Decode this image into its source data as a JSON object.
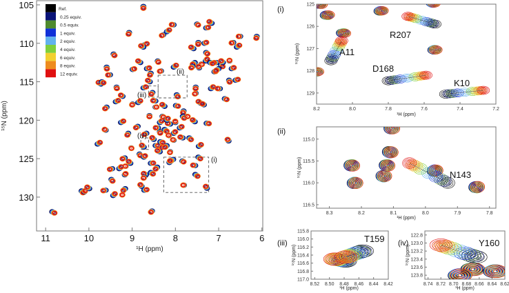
{
  "chart_data": [
    {
      "id": "main",
      "type": "scatter",
      "subtype": "2D 1H-15N HSQC titration overlay",
      "xlabel": "¹H (ppm)",
      "ylabel": "¹⁵N (ppm)",
      "xlim": [
        11.21,
        5.98
      ],
      "ylim": [
        104.46,
        134.4
      ],
      "x_reversed": true,
      "y_reversed": true,
      "xticks": [
        "11",
        "10",
        "9",
        "8",
        "7",
        "6"
      ],
      "yticks": [
        "105",
        "110",
        "115",
        "120",
        "125",
        "130"
      ],
      "legend": {
        "placement": "top-left",
        "entries": [
          {
            "label": "Ref.",
            "color": "#000000"
          },
          {
            "label": "0.25 equiv.",
            "color": "#0a1478"
          },
          {
            "label": "0.5 equiv.",
            "color": "#4f8a2e"
          },
          {
            "label": "1 equiv.",
            "color": "#1030d8"
          },
          {
            "label": "2 equiv.",
            "color": "#62b2ee"
          },
          {
            "label": "4 equiv.",
            "color": "#7fcf3c"
          },
          {
            "label": "6 equiv.",
            "color": "#f2d030"
          },
          {
            "label": "8 equiv.",
            "color": "#ee8c1e"
          },
          {
            "label": "12 equiv.",
            "color": "#e01010"
          }
        ]
      },
      "inset_regions": [
        {
          "label": "(i)",
          "h": [
            8.27,
            7.23
          ],
          "n": [
            124.8,
            129.4
          ]
        },
        {
          "label": "(ii)",
          "h": [
            8.4,
            7.73
          ],
          "n": [
            114.15,
            117.1
          ]
        },
        {
          "label": "(iii)",
          "h": [
            8.62,
            8.4
          ],
          "n": [
            115.55,
            117.0
          ]
        },
        {
          "label": "(iv)",
          "h": [
            8.8,
            8.62
          ],
          "n": [
            122.3,
            123.8
          ]
        }
      ],
      "peaks": [
        [
          8.74,
          105.2
        ],
        [
          8.04,
          107.6
        ],
        [
          8.2,
          108.5
        ],
        [
          8.28,
          108.9
        ],
        [
          9.07,
          108.6
        ],
        [
          8.71,
          110.2
        ],
        [
          8.74,
          110.5
        ],
        [
          9.43,
          111.4
        ],
        [
          7.5,
          107.5
        ],
        [
          7.16,
          107.4
        ],
        [
          7.29,
          108.0
        ],
        [
          6.12,
          109.1
        ],
        [
          6.5,
          109.1
        ],
        [
          6.58,
          110.5
        ],
        [
          6.66,
          109.9
        ],
        [
          7.47,
          109.9
        ],
        [
          7.33,
          110.0
        ],
        [
          7.58,
          110.7
        ],
        [
          7.29,
          111.2
        ],
        [
          8.41,
          112.3
        ],
        [
          8.81,
          112.5
        ],
        [
          8.66,
          113.3
        ],
        [
          8.57,
          113.9
        ],
        [
          8.33,
          113.6
        ],
        [
          8.04,
          113.1
        ],
        [
          9.51,
          114.1
        ],
        [
          9.59,
          113.1
        ],
        [
          8.99,
          113.4
        ],
        [
          9.72,
          115.3
        ],
        [
          9.7,
          115.0
        ],
        [
          9.36,
          115.7
        ],
        [
          8.59,
          115.0
        ],
        [
          8.74,
          115.8
        ],
        [
          8.53,
          116.4
        ],
        [
          7.53,
          116.5
        ],
        [
          7.18,
          115.9
        ],
        [
          6.97,
          115.9
        ],
        [
          6.76,
          114.8
        ],
        [
          7.1,
          113.7
        ],
        [
          7.41,
          117.8
        ],
        [
          6.86,
          117.2
        ],
        [
          7.53,
          115.7
        ],
        [
          9.22,
          116.9
        ],
        [
          9.38,
          117.6
        ],
        [
          9.59,
          118.3
        ],
        [
          8.99,
          117.9
        ],
        [
          8.86,
          117.7
        ],
        [
          8.46,
          117.5
        ],
        [
          7.97,
          116.7
        ],
        [
          8.46,
          118.3
        ],
        [
          8.25,
          118.2
        ],
        [
          7.99,
          118.1
        ],
        [
          7.81,
          118.8
        ],
        [
          7.34,
          118.0
        ],
        [
          9.26,
          120.3
        ],
        [
          8.87,
          120.8
        ],
        [
          8.6,
          119.4
        ],
        [
          8.36,
          120.3
        ],
        [
          8.12,
          120.5
        ],
        [
          7.83,
          119.5
        ],
        [
          7.73,
          119.5
        ],
        [
          7.55,
          120.2
        ],
        [
          7.28,
          120.4
        ],
        [
          9.09,
          121.7
        ],
        [
          9.61,
          121.3
        ],
        [
          9.8,
          123.1
        ],
        [
          8.67,
          121.7
        ],
        [
          8.36,
          121.5
        ],
        [
          8.04,
          121.7
        ],
        [
          7.83,
          122.3
        ],
        [
          7.68,
          122.3
        ],
        [
          9.02,
          123.6
        ],
        [
          8.73,
          123.5
        ],
        [
          8.46,
          123.3
        ],
        [
          8.28,
          123.3
        ],
        [
          8.04,
          122.6
        ],
        [
          7.46,
          123.4
        ],
        [
          9.17,
          124.9
        ],
        [
          8.83,
          124.4
        ],
        [
          8.73,
          124.8
        ],
        [
          8.36,
          124.1
        ],
        [
          7.47,
          124.8
        ],
        [
          8.12,
          124.1
        ],
        [
          9.04,
          125.6
        ],
        [
          8.57,
          125.6
        ],
        [
          8.42,
          126.1
        ],
        [
          9.15,
          126.0
        ],
        [
          9.3,
          126.3
        ],
        [
          9.46,
          126.3
        ],
        [
          9.48,
          127.7
        ],
        [
          9.17,
          127.1
        ],
        [
          8.68,
          127.1
        ],
        [
          8.57,
          126.8
        ],
        [
          8.72,
          127.4
        ],
        [
          8.78,
          128.6
        ],
        [
          8.72,
          129.1
        ],
        [
          9.16,
          128.9
        ],
        [
          9.23,
          129.7
        ],
        [
          9.44,
          129.8
        ],
        [
          9.61,
          129.1
        ],
        [
          10.17,
          129.2
        ],
        [
          10.1,
          129.3
        ],
        [
          9.99,
          128.9
        ],
        [
          10.85,
          131.9
        ],
        [
          8.54,
          131.8
        ],
        [
          6.77,
          122.7
        ],
        [
          6.61,
          114.8
        ],
        [
          7.55,
          112.5
        ],
        [
          7.4,
          112.7
        ],
        [
          7.3,
          112.3
        ],
        [
          7.05,
          112.5
        ],
        [
          6.95,
          112.8
        ],
        [
          6.75,
          112.3
        ],
        [
          6.9,
          112.5
        ],
        [
          7.2,
          112.5
        ],
        [
          7.6,
          113.0
        ],
        [
          7.45,
          113.2
        ],
        [
          6.7,
          113.3
        ],
        [
          7.0,
          113.3
        ],
        [
          8.3,
          119.5
        ],
        [
          8.2,
          120.0
        ],
        [
          8.4,
          121.0
        ],
        [
          8.25,
          121.2
        ],
        [
          8.15,
          122.0
        ],
        [
          8.5,
          122.5
        ],
        [
          8.35,
          122.8
        ],
        [
          8.2,
          123.3
        ],
        [
          8.0,
          120.3
        ],
        [
          7.9,
          121.0
        ],
        [
          8.05,
          125.1
        ],
        [
          7.84,
          125.3
        ],
        [
          8.14,
          125.5
        ],
        [
          7.54,
          125.9
        ],
        [
          7.54,
          127.05
        ],
        [
          7.8,
          128.45
        ],
        [
          7.27,
          128.85
        ]
      ]
    },
    {
      "id": "i",
      "panel_label": "(i)",
      "type": "scatter",
      "xlabel": "¹H (ppm)",
      "ylabel": "¹⁵N (ppm)",
      "xlim": [
        8.2,
        7.2
      ],
      "ylim": [
        125,
        129.5
      ],
      "xticks": [
        "8.2",
        "8.0",
        "7.8",
        "7.6",
        "7.4",
        "7.2"
      ],
      "yticks": [
        "125",
        "126",
        "127",
        "128",
        "129"
      ],
      "trajectories": [
        {
          "residue": "A11",
          "ref": [
            8.12,
            127.55
          ],
          "end": [
            8.06,
            126.65
          ]
        },
        {
          "residue": "R207",
          "ref": [
            7.54,
            125.9
          ],
          "end": [
            7.69,
            125.55
          ]
        },
        {
          "residue": "D168",
          "ref": [
            7.8,
            128.45
          ],
          "end": [
            7.59,
            128.2
          ]
        },
        {
          "residue": "K10",
          "ref": [
            7.48,
            129.05
          ],
          "end": [
            7.27,
            128.88
          ]
        }
      ],
      "static_peaks": [
        [
          8.05,
          126.3
        ],
        [
          7.54,
          127.05
        ],
        [
          7.84,
          125.3
        ],
        [
          8.14,
          125.5
        ],
        [
          8.2,
          128.05
        ],
        [
          7.55,
          124.95
        ],
        [
          8.18,
          125.0
        ]
      ]
    },
    {
      "id": "ii",
      "panel_label": "(ii)",
      "type": "scatter",
      "xlabel": "¹H (ppm)",
      "ylabel": "¹⁵N (ppm)",
      "xlim": [
        8.34,
        7.78
      ],
      "ylim": [
        114.72,
        116.58
      ],
      "xticks": [
        "8.3",
        "8.2",
        "8.1",
        "8.0",
        "7.9",
        "7.8"
      ],
      "yticks": [
        "115.0",
        "115.5",
        "116.0",
        "116.5"
      ],
      "trajectories": [
        {
          "residue": "N143",
          "ref": [
            7.93,
            116.0
          ],
          "end": [
            8.05,
            115.55
          ]
        }
      ],
      "static_peaks": [
        [
          8.23,
          115.6
        ],
        [
          8.22,
          116.0
        ],
        [
          7.97,
          115.72
        ],
        [
          7.84,
          116.1
        ],
        [
          8.13,
          115.85
        ],
        [
          8.11,
          115.3
        ],
        [
          8.12,
          115.6
        ],
        [
          8.105,
          114.75
        ]
      ]
    },
    {
      "id": "iii",
      "panel_label": "(iii)",
      "type": "scatter",
      "xlabel": "¹H (ppm)",
      "ylabel": "¹⁵N (ppm)",
      "xlim": [
        8.525,
        8.42
      ],
      "ylim": [
        115.8,
        117.0
      ],
      "xticks": [
        "8.52",
        "8.50",
        "8.48",
        "8.46",
        "8.44",
        "8.42"
      ],
      "yticks": [
        "115.8",
        "116.0",
        "116.2",
        "116.4",
        "116.6",
        "116.8",
        "117.0"
      ],
      "trajectories": [
        {
          "residue": "T159",
          "ref": [
            8.478,
            116.55
          ],
          "end": [
            8.493,
            116.5
          ]
        },
        {
          "residue": "",
          "ref": [
            8.455,
            116.3
          ],
          "end": [
            8.478,
            116.45
          ]
        }
      ],
      "static_peaks": []
    },
    {
      "id": "iv",
      "panel_label": "(iv)",
      "type": "scatter",
      "xlabel": "¹H (ppm)",
      "ylabel": "¹⁵N (ppm)",
      "xlim": [
        8.745,
        8.62
      ],
      "ylim": [
        122.7,
        123.9
      ],
      "xticks": [
        "8.74",
        "8.72",
        "8.70",
        "8.68",
        "8.66",
        "8.64",
        "8.62"
      ],
      "yticks": [
        "122.8",
        "123.0",
        "123.2",
        "123.4",
        "123.6",
        "123.8"
      ],
      "trajectories": [
        {
          "residue": "Y160",
          "ref": [
            8.665,
            123.35
          ],
          "end": [
            8.72,
            123.05
          ]
        }
      ],
      "static_peaks": [
        [
          8.67,
          123.65
        ],
        [
          8.635,
          123.7
        ],
        [
          8.69,
          123.8
        ]
      ]
    }
  ]
}
